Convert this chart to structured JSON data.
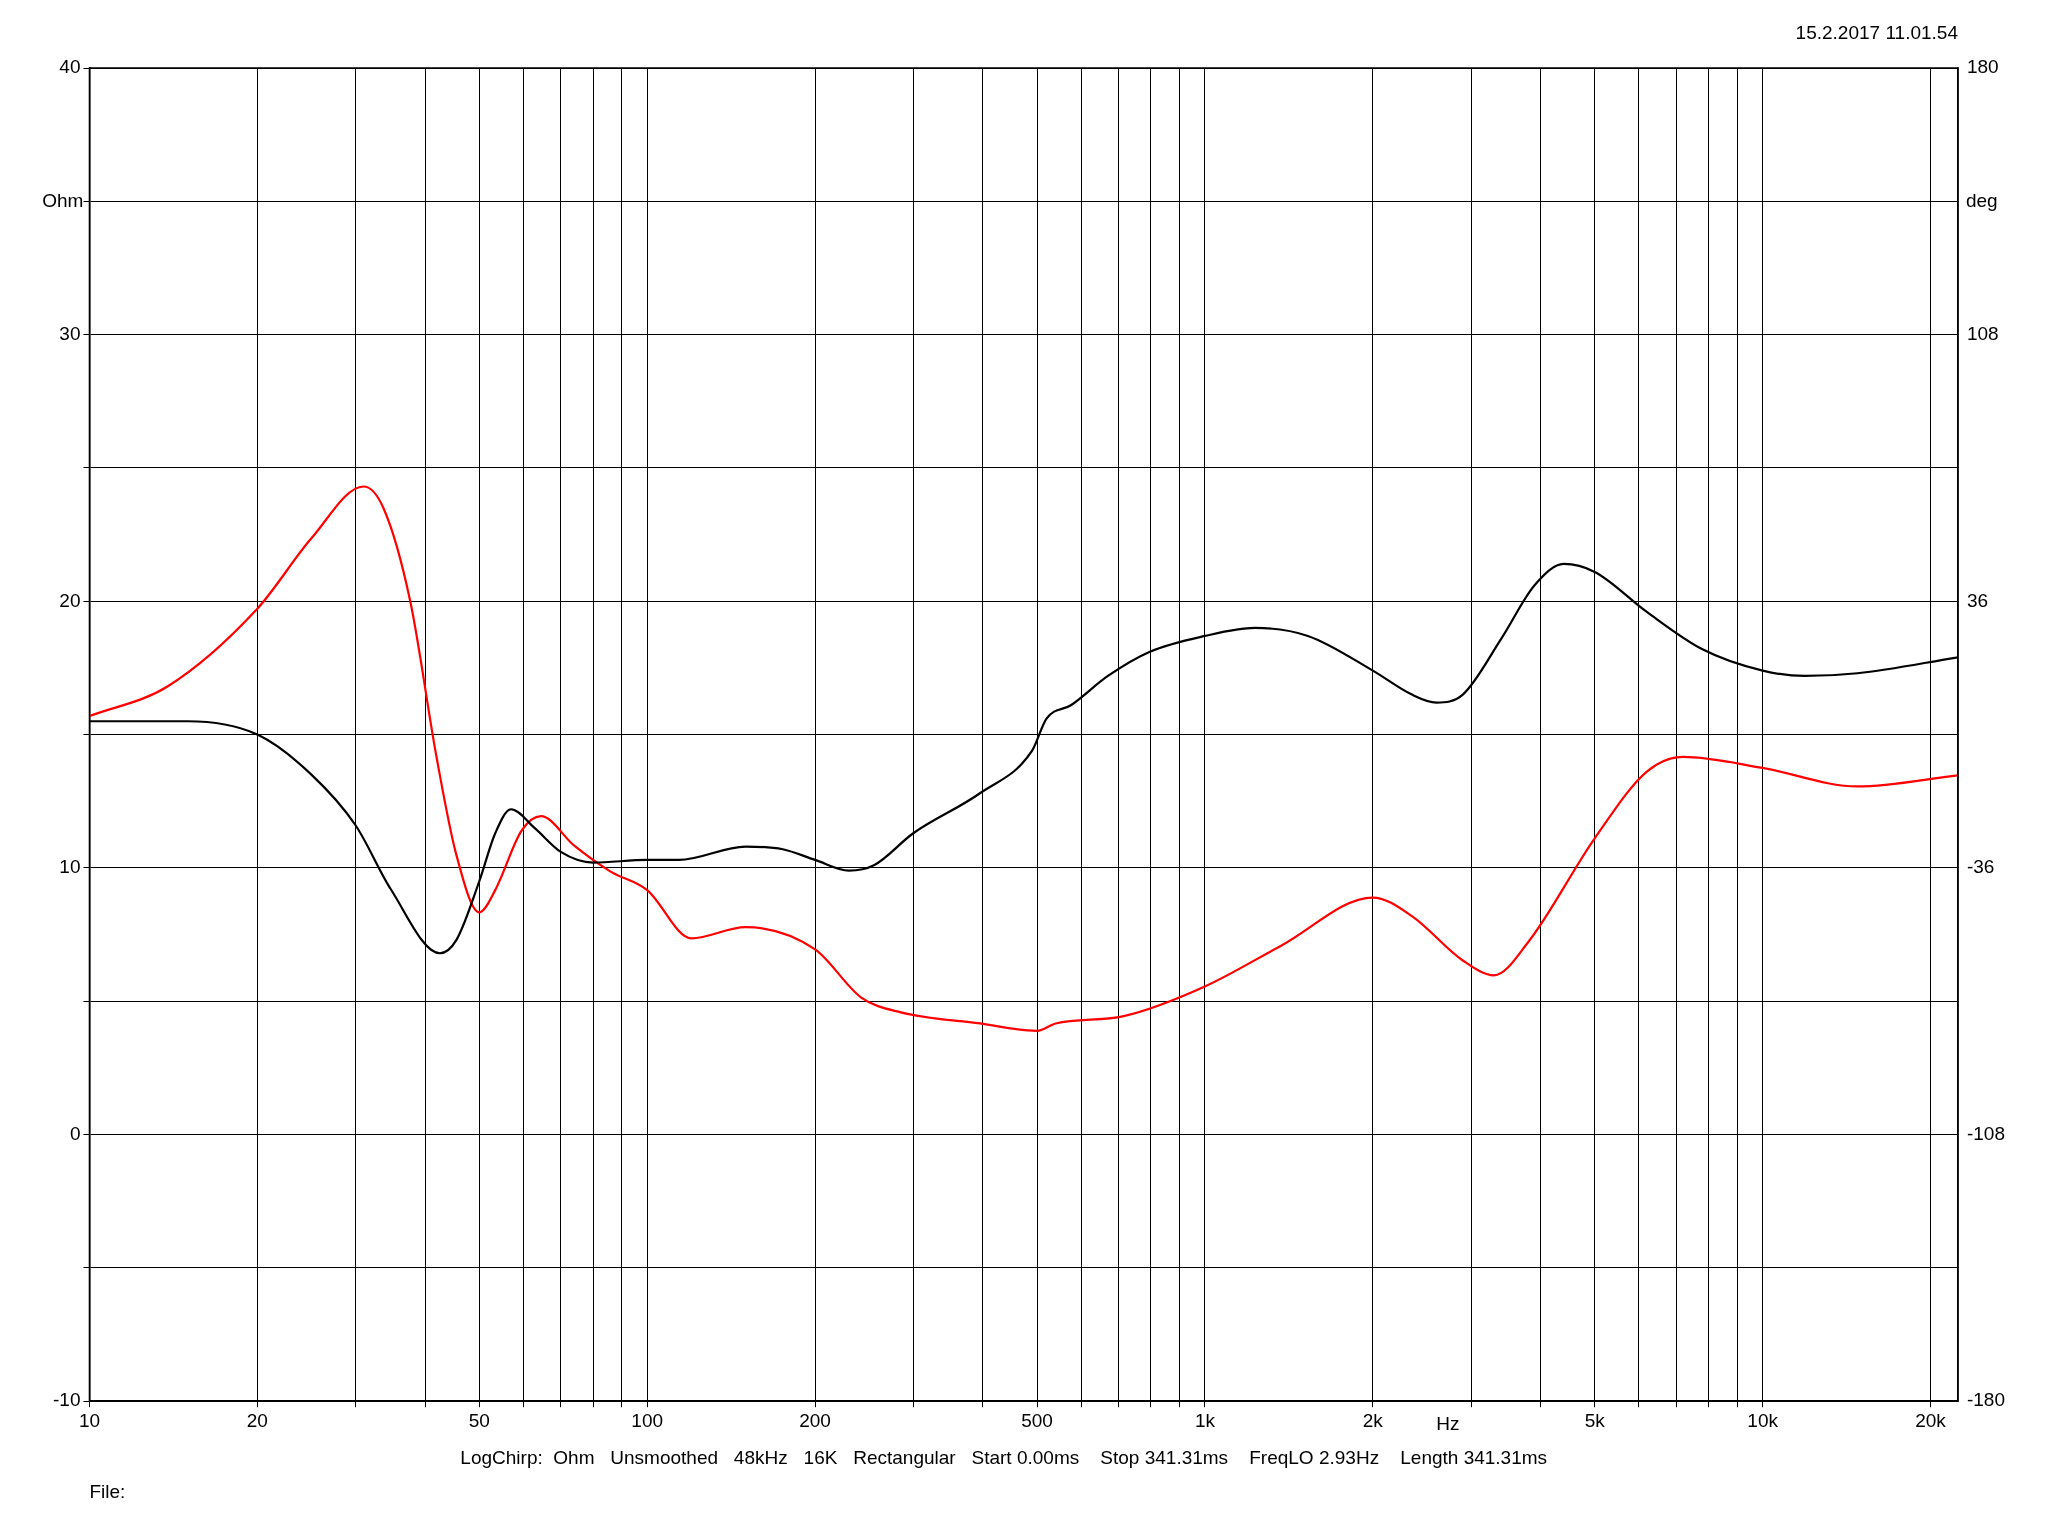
{
  "chart_data": {
    "type": "line",
    "xlabel": "Hz",
    "ylabel": "Ohm",
    "y2label": "deg",
    "log": "x",
    "grid": true,
    "legend": false,
    "marker": "none",
    "line_style": "solid",
    "annotations": [
      "15.2.2017 11.01.54",
      "LogChirp:  Ohm   Unsmoothed   48kHz   16K   Rectangular   Start 0.00ms    Stop 341.31ms    FreqLO 2.93Hz    Length 341.31ms",
      "File:"
    ],
    "xlim": [
      10,
      22400
    ],
    "xticks": [
      10,
      20,
      {
        "value": 30,
        "label": null
      },
      {
        "value": 40,
        "label": null
      },
      50,
      {
        "value": 60,
        "label": null
      },
      {
        "value": 70,
        "label": null
      },
      {
        "value": 80,
        "label": null
      },
      {
        "value": 90,
        "label": null
      },
      100,
      200,
      {
        "value": 300,
        "label": null
      },
      {
        "value": 400,
        "label": null
      },
      500,
      {
        "value": 600,
        "label": null
      },
      {
        "value": 700,
        "label": null
      },
      {
        "value": 800,
        "label": null
      },
      {
        "value": 900,
        "label": null
      },
      {
        "value": 1000,
        "label": "1k"
      },
      {
        "value": 2000,
        "label": "2k"
      },
      {
        "value": 3000,
        "label": null
      },
      {
        "value": 4000,
        "label": null
      },
      {
        "value": 5000,
        "label": "5k"
      },
      {
        "value": 6000,
        "label": null
      },
      {
        "value": 7000,
        "label": null
      },
      {
        "value": 8000,
        "label": null
      },
      {
        "value": 9000,
        "label": null
      },
      {
        "value": 10000,
        "label": "10k"
      },
      {
        "value": 20000,
        "label": "20k"
      }
    ],
    "ylim": [
      -10,
      40
    ],
    "yticks": [
      -10,
      {
        "value": -5,
        "label": null
      },
      0,
      {
        "value": 5,
        "label": null
      },
      10,
      {
        "value": 15,
        "label": null
      },
      20,
      {
        "value": 25,
        "label": null
      },
      30,
      {
        "value": 35,
        "label": null
      },
      40
    ],
    "y2lim": [
      -180,
      180
    ],
    "y2ticks": [
      -180,
      -108,
      -36,
      36,
      108,
      180
    ],
    "series": [
      {
        "color": "#000000",
        "x": [
          10,
          15,
          20,
          25,
          30,
          34.7,
          42.5,
          45.5,
          50,
          53.4,
          57,
          62.8,
          70,
          80,
          100,
          114,
          150,
          175,
          200,
          230,
          255,
          300,
          395,
          490,
          520,
          575,
          670,
          795,
          1000,
          1230,
          1530,
          2000,
          2350,
          2600,
          2900,
          3400,
          3900,
          4400,
          5000,
          6200,
          7800,
          10000,
          11900,
          14800,
          22400
        ],
        "values": [
          15.5,
          15.5,
          15.0,
          13.5,
          11.6,
          9.2,
          6.8,
          7.3,
          9.5,
          11.3,
          12.2,
          11.5,
          10.6,
          10.2,
          10.3,
          10.3,
          10.8,
          10.7,
          10.3,
          9.9,
          10.1,
          11.3,
          12.8,
          14.4,
          15.6,
          16.1,
          17.2,
          18.1,
          18.7,
          19.0,
          18.7,
          17.4,
          16.5,
          16.2,
          16.5,
          18.6,
          20.6,
          21.4,
          21.1,
          19.6,
          18.2,
          17.4,
          17.2,
          17.3,
          17.9
        ]
      },
      {
        "color": "#ff0000",
        "axis": "y2",
        "x": [
          10,
          13.8,
          20,
          25,
          31,
          33.7,
          37.6,
          41.9,
          45.4,
          50,
          53.4,
          59.5,
          64.5,
          74,
          86,
          100,
          120,
          150,
          200,
          242,
          285,
          395,
          500,
          540,
          715,
          1000,
          1370,
          2000,
          2350,
          2900,
          3300,
          3800,
          5000,
          6200,
          7200,
          10000,
          14800,
          22400
        ],
        "values": [
          5,
          13,
          34,
          53,
          67,
          61,
          36,
          -6,
          -32,
          -48,
          -42,
          -26,
          -22,
          -30,
          -37,
          -42,
          -55,
          -52,
          -58,
          -71,
          -75,
          -78,
          -80,
          -78,
          -76,
          -68,
          -57,
          -44,
          -49,
          -61,
          -65,
          -56,
          -28,
          -10,
          -6,
          -9,
          -14,
          -11
        ]
      }
    ]
  }
}
